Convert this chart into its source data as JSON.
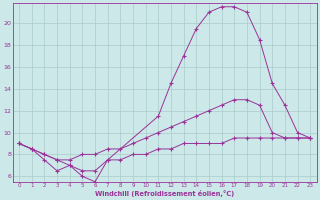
{
  "background_color": "#cce8e8",
  "plot_bg_color": "#cce8e8",
  "grid_color": "#aacccc",
  "line_color": "#993399",
  "axis_color": "#993399",
  "xlabel": "Windchill (Refroidissement éolien,°C)",
  "yticks": [
    6,
    8,
    10,
    12,
    14,
    16,
    18,
    20
  ],
  "xlim": [
    -0.5,
    23.5
  ],
  "ylim": [
    5.5,
    21.8
  ],
  "line1_x": [
    0,
    1,
    2,
    3,
    4,
    5,
    6,
    7,
    11,
    12,
    13,
    14,
    15,
    16,
    17,
    18,
    19,
    20,
    21,
    22,
    23
  ],
  "line1_y": [
    9.0,
    8.5,
    7.5,
    6.5,
    7.0,
    6.0,
    5.5,
    7.5,
    11.5,
    14.5,
    17.0,
    19.5,
    21.0,
    21.5,
    21.5,
    21.0,
    18.5,
    14.5,
    12.5,
    10.0,
    9.5
  ],
  "line2_x": [
    0,
    1,
    2,
    3,
    4,
    5,
    6,
    7,
    8,
    9,
    10,
    11,
    12,
    13,
    14,
    15,
    16,
    17,
    18,
    19,
    20,
    21,
    22,
    23
  ],
  "line2_y": [
    9.0,
    8.5,
    8.0,
    7.5,
    7.5,
    8.0,
    8.0,
    8.5,
    8.5,
    9.0,
    9.5,
    10.0,
    10.5,
    11.0,
    11.5,
    12.0,
    12.5,
    13.0,
    13.0,
    12.5,
    10.0,
    9.5,
    9.5,
    9.5
  ],
  "line3_x": [
    0,
    1,
    2,
    3,
    4,
    5,
    6,
    7,
    8,
    9,
    10,
    11,
    12,
    13,
    14,
    15,
    16,
    17,
    18,
    19,
    20,
    21,
    22,
    23
  ],
  "line3_y": [
    9.0,
    8.5,
    8.0,
    7.5,
    7.0,
    6.5,
    6.5,
    7.5,
    7.5,
    8.0,
    8.0,
    8.5,
    8.5,
    9.0,
    9.0,
    9.0,
    9.0,
    9.5,
    9.5,
    9.5,
    9.5,
    9.5,
    9.5,
    9.5
  ]
}
